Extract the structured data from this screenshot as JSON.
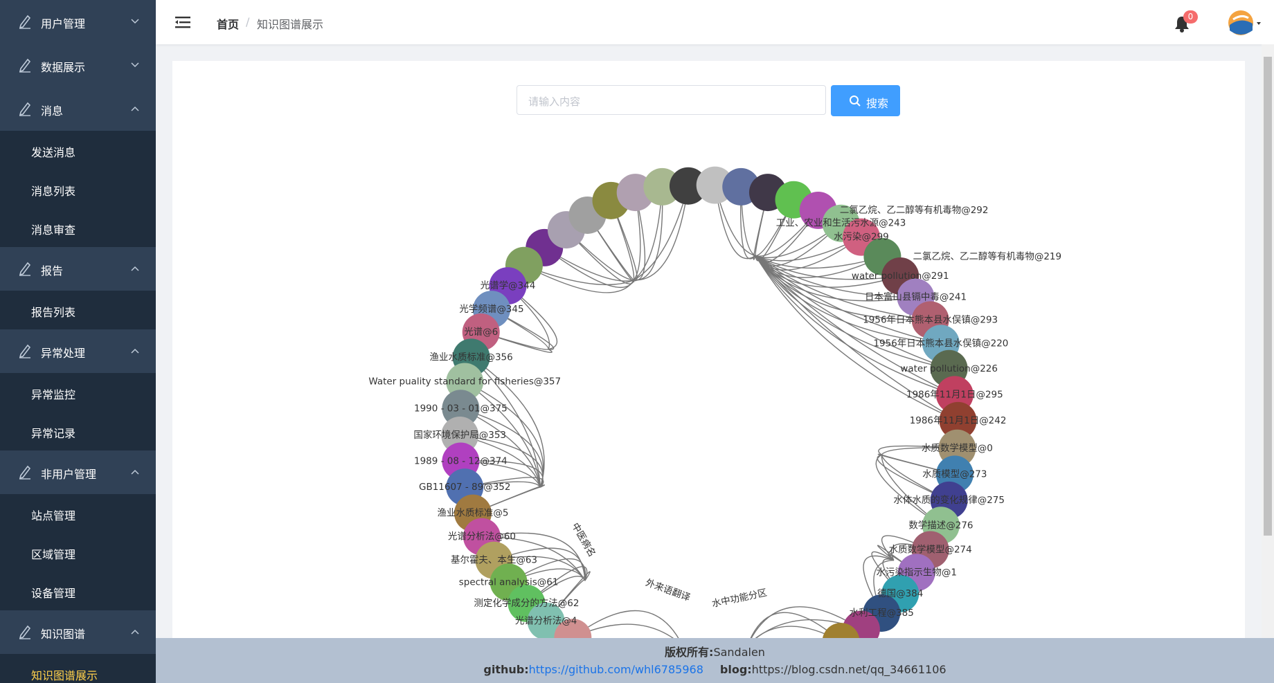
{
  "sidebar": {
    "menu": [
      {
        "label": "用户管理",
        "expanded": false
      },
      {
        "label": "数据展示",
        "expanded": false
      },
      {
        "label": "消息",
        "expanded": true,
        "children": [
          "发送消息",
          "消息列表",
          "消息审查"
        ]
      },
      {
        "label": "报告",
        "expanded": true,
        "children": [
          "报告列表"
        ]
      },
      {
        "label": "异常处理",
        "expanded": true,
        "children": [
          "异常监控",
          "异常记录"
        ]
      },
      {
        "label": "非用户管理",
        "expanded": true,
        "children": [
          "站点管理",
          "区域管理",
          "设备管理"
        ]
      },
      {
        "label": "知识图谱",
        "expanded": true,
        "children": [
          "知识图谱展示"
        ],
        "active_child": 0
      }
    ]
  },
  "header": {
    "breadcrumb": [
      "首页",
      "知识图谱展示"
    ],
    "notification_count": 0
  },
  "search": {
    "placeholder": "请输入内容",
    "button": "搜索"
  },
  "graph": {
    "node_labels": [
      "光谱学@344",
      "光学频谱@345",
      "光谱@6",
      "渔业水质标准@356",
      "Water puality standard for fisheries@357",
      "1990 - 03 - 01@375",
      "国家环境保护局@353",
      "1989 - 08 - 12@374",
      "GB11607 - 89@352",
      "渔业水质标准@5",
      "光谱分析法@60",
      "基尔霍夫、本生@63",
      "spectral analysis@61",
      "测定化学成分的方法@62",
      "光谱分析法@4",
      "水污染@299",
      "water pollution@291",
      "日本富山县镉中毒@241",
      "1956年日本熊本县水俣镇@293",
      "1956年日本熊本县水俣镇@220",
      "water pollution@226",
      "1986年11月1日@295",
      "1986年11月1日@242",
      "水质数学模型@0",
      "水质模型@273",
      "水体水质的变化规律@275",
      "数学描述@276",
      "水质数学模型@274",
      "水污染指示生物@1",
      "德国@384",
      "水利工程@385",
      "工业、农业和生活污水源@243"
    ],
    "free_labels": [
      "二氯乙烷、乙二醇等有机毒物@292",
      "二氯乙烷、乙二醇等有机毒物@219",
      "水中功能分区",
      "外来语翻译",
      "中医病名"
    ]
  },
  "footer": {
    "copyright_label": "版权所有:",
    "copyright_owner": "Sandalen",
    "github_label": "github:",
    "github_url": "https://github.com/whl6785968",
    "blog_label": "blog:",
    "blog_url": "https://blog.csdn.net/qq_34661106"
  }
}
